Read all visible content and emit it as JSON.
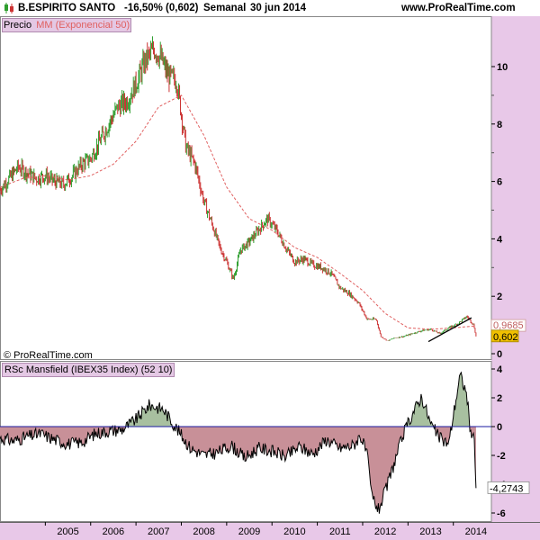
{
  "header": {
    "title": "B.ESPIRITO SANTO",
    "change": "-16,50% (0,602)",
    "period": "Semanal",
    "date": "30 jun 2014",
    "site": "www.ProRealTime.com"
  },
  "copyright": "© ProRealTime.com",
  "colors": {
    "background": "#ffffff",
    "axis_background": "#e8c8e8",
    "up_candle": "#2e9e2e",
    "down_candle": "#cc3333",
    "ma_line": "#e06060",
    "rsc_positive_fill": "#a8c0a0",
    "rsc_negative_fill": "#c89098",
    "zero_line": "#1a1aa0",
    "last_price_box": "#f0c000",
    "ma_label_box": "#ffffff"
  },
  "chart_data": [
    {
      "type": "line",
      "title": "Precio",
      "series": [
        {
          "name": "Precio",
          "x": [
            2004.0,
            2004.2,
            2004.4,
            2004.6,
            2004.8,
            2005.0,
            2005.2,
            2005.4,
            2005.6,
            2005.8,
            2006.0,
            2006.2,
            2006.4,
            2006.6,
            2006.8,
            2007.0,
            2007.2,
            2007.4,
            2007.55,
            2007.7,
            2007.9,
            2008.1,
            2008.3,
            2008.5,
            2008.7,
            2008.85,
            2009.0,
            2009.15,
            2009.3,
            2009.5,
            2009.7,
            2009.9,
            2010.1,
            2010.3,
            2010.5,
            2010.7,
            2010.9,
            2011.1,
            2011.3,
            2011.5,
            2011.7,
            2011.9,
            2012.1,
            2012.3,
            2012.4,
            2012.55,
            2012.7,
            2012.9,
            2013.1,
            2013.3,
            2013.5,
            2013.7,
            2013.9,
            2014.1,
            2014.3,
            2014.45,
            2014.5
          ],
          "values": [
            5.7,
            6.1,
            6.5,
            6.3,
            6.1,
            6.2,
            6.0,
            5.9,
            6.2,
            6.6,
            6.8,
            7.4,
            8.0,
            8.6,
            8.8,
            9.4,
            10.2,
            10.6,
            10.3,
            9.7,
            9.5,
            7.2,
            6.6,
            5.3,
            4.4,
            3.7,
            3.2,
            2.6,
            3.6,
            3.9,
            4.3,
            4.7,
            4.3,
            3.7,
            3.2,
            3.3,
            3.1,
            3.0,
            2.8,
            2.3,
            2.1,
            1.8,
            1.2,
            1.2,
            0.6,
            0.45,
            0.55,
            0.6,
            0.7,
            0.8,
            0.85,
            0.7,
            0.9,
            1.05,
            1.3,
            1.0,
            0.602
          ]
        },
        {
          "name": "MM (Exponencial 50)",
          "x": [
            2004.0,
            2004.5,
            2005.0,
            2005.5,
            2006.0,
            2006.5,
            2007.0,
            2007.5,
            2008.0,
            2008.5,
            2009.0,
            2009.5,
            2010.0,
            2010.5,
            2011.0,
            2011.5,
            2012.0,
            2012.5,
            2013.0,
            2013.5,
            2014.0,
            2014.5
          ],
          "values": [
            5.8,
            6.1,
            6.2,
            6.05,
            6.2,
            6.6,
            7.4,
            8.6,
            9.0,
            7.6,
            5.8,
            4.7,
            4.3,
            3.7,
            3.35,
            2.8,
            2.2,
            1.4,
            0.9,
            0.85,
            0.9,
            0.9685
          ]
        }
      ],
      "last_value": "0,602",
      "ma_last_value": "0,9685",
      "yticks": [
        "0",
        "2",
        "4",
        "6",
        "8",
        "10"
      ],
      "ylim": [
        0,
        11.3
      ],
      "xlim": [
        2004.0,
        2014.8
      ]
    },
    {
      "type": "area",
      "title": "RSc Mansfield (IBEX35 Index) (52 10)",
      "series": [
        {
          "name": "RSc Mansfield (IBEX35 Index) (52 10)",
          "x": [
            2004.0,
            2004.3,
            2004.6,
            2004.9,
            2005.2,
            2005.5,
            2005.8,
            2006.1,
            2006.4,
            2006.7,
            2007.0,
            2007.3,
            2007.6,
            2007.8,
            2008.0,
            2008.2,
            2008.5,
            2008.8,
            2009.1,
            2009.4,
            2009.7,
            2010.0,
            2010.3,
            2010.6,
            2010.9,
            2011.2,
            2011.5,
            2011.8,
            2011.95,
            2012.1,
            2012.2,
            2012.35,
            2012.5,
            2012.7,
            2012.9,
            2013.1,
            2013.3,
            2013.5,
            2013.7,
            2013.9,
            2014.0,
            2014.15,
            2014.3,
            2014.4,
            2014.45,
            2014.5
          ],
          "values": [
            -0.8,
            -1.0,
            -0.7,
            -0.5,
            -0.9,
            -1.2,
            -1.1,
            -0.5,
            -0.3,
            -0.2,
            0.5,
            1.5,
            1.2,
            0.3,
            -0.6,
            -1.5,
            -2.0,
            -1.8,
            -1.3,
            -2.2,
            -1.5,
            -1.7,
            -2.1,
            -1.4,
            -1.9,
            -0.9,
            -1.5,
            -1.3,
            -0.6,
            -2.0,
            -4.8,
            -5.8,
            -4.5,
            -2.5,
            -0.5,
            0.9,
            2.1,
            0.2,
            -0.8,
            -1.2,
            0.8,
            3.6,
            2.2,
            -1.2,
            0.2,
            -4.2743
          ]
        }
      ],
      "last_value": "-4,2743",
      "yticks": [
        "-6",
        "-4",
        "-2",
        "0",
        "2",
        "4"
      ],
      "ylim": [
        -6.4,
        4.6
      ]
    }
  ],
  "xaxis": {
    "years": [
      "2005",
      "2006",
      "2007",
      "2008",
      "2009",
      "2010",
      "2011",
      "2012",
      "2013",
      "2014"
    ]
  },
  "legend": {
    "price_label": "Precio",
    "ma_label": "MM (Exponencial 50)",
    "rsc_label": "RSc Mansfield (IBEX35 Index) (52 10)"
  }
}
